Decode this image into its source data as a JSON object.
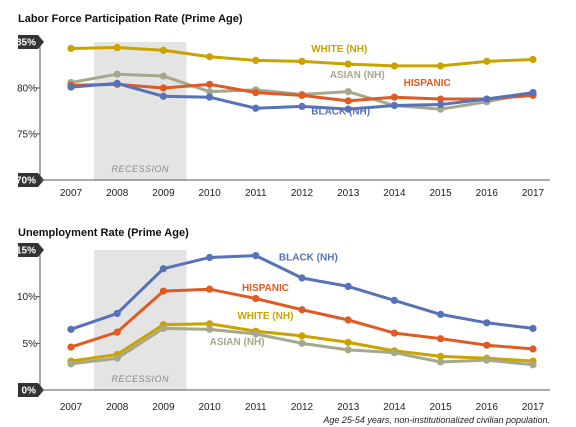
{
  "colors": {
    "white": "#C9A300",
    "asian": "#A7A78B",
    "hispanic": "#E05A23",
    "black": "#5872B8",
    "recession": "#E4E4E4",
    "badge": "#333333"
  },
  "footnote": "Age 25-54 years, non-institutionalized civilian population.",
  "chart_data": [
    {
      "type": "line",
      "title": "Labor Force Participation Rate (Prime Age)",
      "x": [
        "2007",
        "2008",
        "2009",
        "2010",
        "2011",
        "2012",
        "2013",
        "2014",
        "2015",
        "2016",
        "2017"
      ],
      "ylim": [
        70,
        85
      ],
      "yticks": [
        {
          "value": 85,
          "label": "85%",
          "badge": true
        },
        {
          "value": 80,
          "label": "80%",
          "badge": false
        },
        {
          "value": 75,
          "label": "75%",
          "badge": false
        },
        {
          "value": 70,
          "label": "70%",
          "badge": true
        }
      ],
      "shaded_region": {
        "label": "RECESSION",
        "start": 2007.5,
        "end": 2009.5
      },
      "grid": false,
      "series": [
        {
          "key": "white",
          "name": "WHITE (NH)",
          "label_at": [
            2012.2,
            83.9
          ],
          "values": [
            84.3,
            84.4,
            84.1,
            83.4,
            83.0,
            82.9,
            82.6,
            82.4,
            82.4,
            82.9,
            83.1
          ]
        },
        {
          "key": "asian",
          "name": "ASIAN (NH)",
          "label_at": [
            2012.6,
            81.1
          ],
          "values": [
            80.6,
            81.5,
            81.3,
            79.6,
            79.8,
            79.3,
            79.6,
            78.1,
            77.7,
            78.5,
            79.5
          ]
        },
        {
          "key": "hispanic",
          "name": "HISPANIC",
          "label_at": [
            2014.2,
            80.2
          ],
          "values": [
            80.3,
            80.4,
            80.0,
            80.4,
            79.5,
            79.2,
            78.6,
            79.0,
            78.8,
            78.8,
            79.2
          ]
        },
        {
          "key": "black",
          "name": "BLACK (NH)",
          "label_at": [
            2012.2,
            77.1
          ],
          "values": [
            80.1,
            80.5,
            79.1,
            79.0,
            77.8,
            78.0,
            77.7,
            78.1,
            78.2,
            78.8,
            79.5
          ]
        }
      ]
    },
    {
      "type": "line",
      "title": "Unemployment Rate (Prime Age)",
      "x": [
        "2007",
        "2008",
        "2009",
        "2010",
        "2011",
        "2012",
        "2013",
        "2014",
        "2015",
        "2016",
        "2017"
      ],
      "ylim": [
        0,
        15
      ],
      "yticks": [
        {
          "value": 15,
          "label": "15%",
          "badge": true
        },
        {
          "value": 10,
          "label": "10%",
          "badge": false
        },
        {
          "value": 5,
          "label": "5%",
          "badge": false
        },
        {
          "value": 0,
          "label": "0%",
          "badge": true
        }
      ],
      "shaded_region": {
        "label": "RECESSION",
        "start": 2007.5,
        "end": 2009.5
      },
      "grid": false,
      "series": [
        {
          "key": "black",
          "name": "BLACK (NH)",
          "label_at": [
            2011.5,
            13.9
          ],
          "values": [
            6.5,
            8.2,
            13.0,
            14.2,
            14.4,
            12.0,
            11.1,
            9.6,
            8.1,
            7.2,
            6.6
          ]
        },
        {
          "key": "hispanic",
          "name": "HISPANIC",
          "label_at": [
            2010.7,
            10.6
          ],
          "values": [
            4.6,
            6.2,
            10.6,
            10.8,
            9.8,
            8.6,
            7.5,
            6.1,
            5.5,
            4.8,
            4.4
          ]
        },
        {
          "key": "white",
          "name": "WHITE (NH)",
          "label_at": [
            2010.6,
            7.6
          ],
          "values": [
            3.1,
            3.8,
            7.0,
            7.1,
            6.3,
            5.8,
            5.1,
            4.2,
            3.6,
            3.4,
            3.1
          ]
        },
        {
          "key": "asian",
          "name": "ASIAN (NH)",
          "label_at": [
            2010.0,
            4.8
          ],
          "values": [
            2.8,
            3.4,
            6.6,
            6.5,
            6.0,
            5.0,
            4.3,
            4.0,
            3.0,
            3.2,
            2.7
          ]
        }
      ]
    }
  ]
}
